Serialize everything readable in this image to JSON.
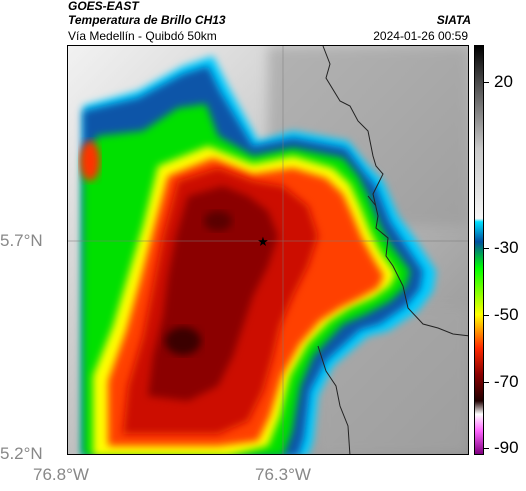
{
  "header": {
    "satellite": "GOES-EAST",
    "product": "Temperatura de Brillo CH13",
    "region": "Vía Medellín - Quibdó 50km",
    "credit": "SIATA",
    "timestamp": "2024-01-26 00:59"
  },
  "axes": {
    "y_ticks": [
      {
        "label": "5.7°N",
        "value": 5.7
      },
      {
        "label": "5.2°N",
        "value": 5.2
      }
    ],
    "x_ticks": [
      {
        "label": "76.8°W",
        "value": -76.8
      },
      {
        "label": "76.3°W",
        "value": -76.3
      }
    ]
  },
  "colorbar": {
    "ticks": [
      {
        "label": "20",
        "value": 20
      },
      {
        "label": "-30",
        "value": -30
      },
      {
        "label": "-50",
        "value": -50
      },
      {
        "label": "-70",
        "value": -70
      },
      {
        "label": "-90",
        "value": -90
      }
    ],
    "stops": [
      {
        "value": 31,
        "color": "#000000"
      },
      {
        "value": 20,
        "color": "#4a4a4a"
      },
      {
        "value": 0,
        "color": "#c8c8c8"
      },
      {
        "value": -21,
        "color": "#f6f6f6"
      },
      {
        "value": -22,
        "color": "#00e0ff"
      },
      {
        "value": -28,
        "color": "#0050a0"
      },
      {
        "value": -36,
        "color": "#00ff00"
      },
      {
        "value": -50,
        "color": "#ffff00"
      },
      {
        "value": -60,
        "color": "#ff2a00"
      },
      {
        "value": -68,
        "color": "#8b0000"
      },
      {
        "value": -76,
        "color": "#200000"
      },
      {
        "value": -80,
        "color": "#ffffff"
      },
      {
        "value": -85,
        "color": "#ff66ff"
      },
      {
        "value": -92,
        "color": "#800080"
      }
    ]
  },
  "marker": {
    "symbol": "★"
  }
}
